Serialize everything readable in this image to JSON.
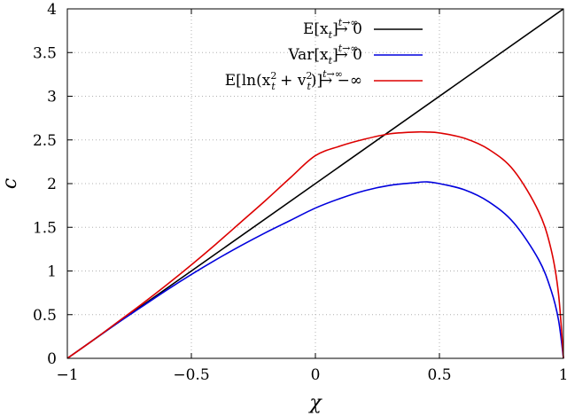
{
  "chart_data": {
    "type": "line",
    "xlabel": "χ",
    "ylabel": "c",
    "xlim": [
      -1,
      1
    ],
    "ylim": [
      0,
      4
    ],
    "x_ticks": [
      -1,
      -0.5,
      0,
      0.5,
      1
    ],
    "x_tick_labels": [
      "−1",
      "−0.5",
      "0",
      "0.5",
      "1"
    ],
    "y_ticks": [
      0,
      0.5,
      1,
      1.5,
      2,
      2.5,
      3,
      3.5,
      4
    ],
    "y_tick_labels": [
      "0",
      "0.5",
      "1",
      "1.5",
      "2",
      "2.5",
      "3",
      "3.5",
      "4"
    ],
    "grid": true,
    "legend_position": "top-right",
    "series": [
      {
        "name": "E[x_t] →(t→∞) 0",
        "legend": {
          "main": "E[x",
          "sub": "t",
          "tail": "]",
          "sup": "t→∞",
          "arrow": "→",
          "end": "0"
        },
        "color": "#000000",
        "x": [
          -1,
          1
        ],
        "y": [
          0,
          4
        ]
      },
      {
        "name": "Var[x_t] →(t→∞) 0",
        "legend": {
          "main": "Var[x",
          "sub": "t",
          "tail": "]",
          "sup": "t→∞",
          "arrow": "→",
          "end": "0"
        },
        "color": "#0000dd",
        "x": [
          -1,
          -0.9,
          -0.8,
          -0.7,
          -0.6,
          -0.5,
          -0.4,
          -0.3,
          -0.2,
          -0.1,
          0,
          0.1,
          0.2,
          0.3,
          0.4,
          0.45,
          0.5,
          0.6,
          0.7,
          0.8,
          0.9,
          0.95,
          0.98,
          1
        ],
        "y": [
          0,
          0.2,
          0.4,
          0.59,
          0.78,
          0.96,
          1.13,
          1.29,
          1.44,
          1.58,
          1.72,
          1.83,
          1.92,
          1.98,
          2.01,
          2.02,
          2.0,
          1.93,
          1.79,
          1.55,
          1.13,
          0.78,
          0.44,
          0
        ]
      },
      {
        "name": "E[ln(x_t^2 + v_t^2)] →(t→∞) −∞",
        "legend": {
          "main": "E[ln(x",
          "sup2a": "2",
          "sub2a": "t",
          "mid": " + v",
          "sup2b": "2",
          "sub2b": "t",
          "tail": ")]",
          "sup": "t→∞",
          "arrow": "→",
          "end": "−∞"
        },
        "color": "#dd0000",
        "x": [
          -1,
          -0.9,
          -0.8,
          -0.7,
          -0.6,
          -0.5,
          -0.4,
          -0.3,
          -0.2,
          -0.1,
          0,
          0.1,
          0.2,
          0.3,
          0.4,
          0.45,
          0.5,
          0.6,
          0.7,
          0.8,
          0.9,
          0.95,
          0.98,
          1
        ],
        "y": [
          0,
          0.2,
          0.41,
          0.62,
          0.84,
          1.07,
          1.31,
          1.56,
          1.81,
          2.07,
          2.32,
          2.43,
          2.51,
          2.57,
          2.59,
          2.59,
          2.58,
          2.52,
          2.39,
          2.15,
          1.68,
          1.25,
          0.74,
          0
        ]
      }
    ]
  }
}
